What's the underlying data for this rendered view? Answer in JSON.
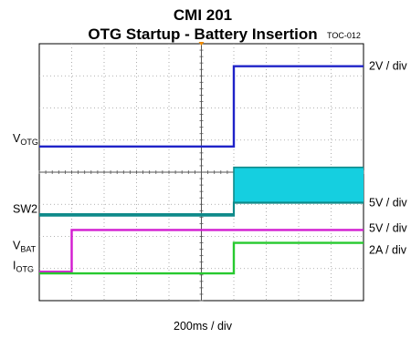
{
  "chart_data": {
    "type": "line",
    "title": "CMI 201",
    "subtitle": "OTG Startup - Battery Insertion",
    "figure_id": "TOC-012",
    "xlabel": "200ms / div",
    "grid": true,
    "grid_divisions": {
      "x": 10,
      "y": 8
    },
    "x_unit": "div",
    "y_unit": "div",
    "xlim": [
      0,
      10
    ],
    "ylim": [
      0,
      8
    ],
    "trigger_marker_x": 5,
    "series": [
      {
        "name": "V",
        "name_sub": "OTG",
        "scale": "2V / div",
        "color": "#1f23c8",
        "kind": "step",
        "x": [
          0,
          6.0,
          6.0,
          10
        ],
        "y": [
          4.8,
          4.8,
          7.3,
          7.3
        ]
      },
      {
        "name": "SW2",
        "scale": "5V / div",
        "color": "#0f8a8a",
        "kind": "band",
        "x": [
          0,
          6.0,
          6.0,
          10
        ],
        "y_low": [
          2.65,
          2.65,
          3.05,
          3.05
        ],
        "y_high": [
          2.7,
          2.7,
          4.15,
          4.15
        ]
      },
      {
        "name": "V",
        "name_sub": "BAT",
        "scale": "5V / div",
        "color": "#d21bd0",
        "kind": "step",
        "x": [
          0,
          1.0,
          1.0,
          10
        ],
        "y": [
          0.9,
          0.9,
          2.2,
          2.2
        ]
      },
      {
        "name": "I",
        "name_sub": "OTG",
        "scale": "2A / div",
        "color": "#27c92f",
        "kind": "step",
        "x": [
          0,
          6.0,
          6.0,
          10
        ],
        "y": [
          0.85,
          0.85,
          1.8,
          1.8
        ]
      }
    ],
    "band_fill": "#15cfe0"
  }
}
